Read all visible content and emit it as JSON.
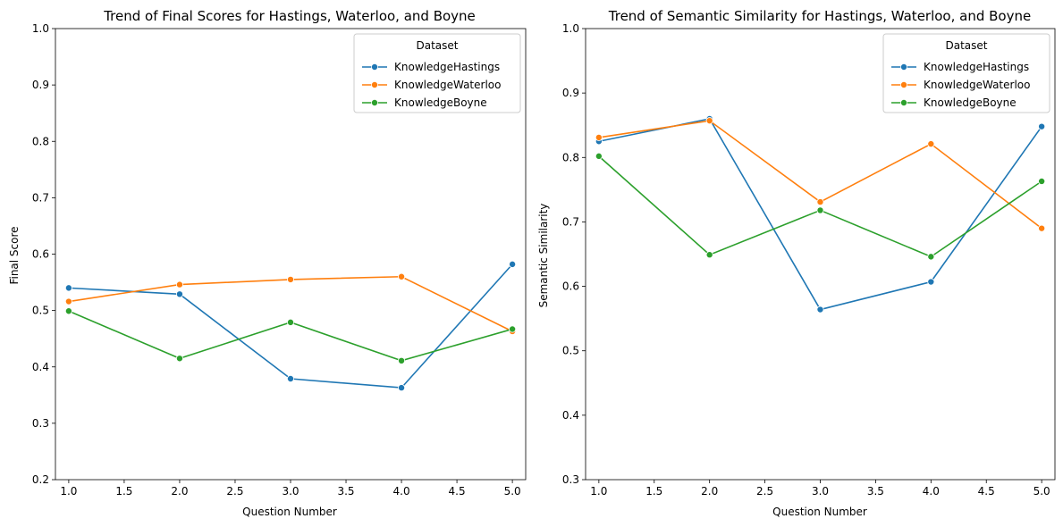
{
  "chart_data": [
    {
      "type": "line",
      "title": "Trend of Final Scores for Hastings, Waterloo, and Boyne",
      "xlabel": "Question Number",
      "ylabel": "Final Score",
      "xlim": [
        0.88,
        5.12
      ],
      "ylim": [
        0.2,
        1.0
      ],
      "xticks": [
        "1.0",
        "1.5",
        "2.0",
        "2.5",
        "3.0",
        "3.5",
        "4.0",
        "4.5",
        "5.0"
      ],
      "yticks": [
        "0.2",
        "0.3",
        "0.4",
        "0.5",
        "0.6",
        "0.7",
        "0.8",
        "0.9",
        "1.0"
      ],
      "grid": false,
      "legend_title": "Dataset",
      "legend_position": "top-right",
      "x": [
        1,
        2,
        3,
        4,
        5
      ],
      "series": [
        {
          "name": "KnowledgeHastings",
          "color": "#1f77b4",
          "values": [
            0.54,
            0.529,
            0.379,
            0.363,
            0.582
          ]
        },
        {
          "name": "KnowledgeWaterloo",
          "color": "#ff7f0e",
          "values": [
            0.516,
            0.546,
            0.555,
            0.56,
            0.463
          ]
        },
        {
          "name": "KnowledgeBoyne",
          "color": "#2ca02c",
          "values": [
            0.499,
            0.415,
            0.479,
            0.411,
            0.467
          ]
        }
      ]
    },
    {
      "type": "line",
      "title": "Trend of Semantic Similarity for Hastings, Waterloo, and Boyne",
      "xlabel": "Question Number",
      "ylabel": "Semantic Similarity",
      "xlim": [
        0.88,
        5.12
      ],
      "ylim": [
        0.3,
        1.0
      ],
      "xticks": [
        "1.0",
        "1.5",
        "2.0",
        "2.5",
        "3.0",
        "3.5",
        "4.0",
        "4.5",
        "5.0"
      ],
      "yticks": [
        "0.3",
        "0.4",
        "0.5",
        "0.6",
        "0.7",
        "0.8",
        "0.9",
        "1.0"
      ],
      "grid": false,
      "legend_title": "Dataset",
      "legend_position": "top-right",
      "x": [
        1,
        2,
        3,
        4,
        5
      ],
      "series": [
        {
          "name": "KnowledgeHastings",
          "color": "#1f77b4",
          "values": [
            0.825,
            0.86,
            0.564,
            0.607,
            0.848
          ]
        },
        {
          "name": "KnowledgeWaterloo",
          "color": "#ff7f0e",
          "values": [
            0.831,
            0.857,
            0.731,
            0.821,
            0.69
          ]
        },
        {
          "name": "KnowledgeBoyne",
          "color": "#2ca02c",
          "values": [
            0.802,
            0.649,
            0.718,
            0.646,
            0.763
          ]
        }
      ]
    }
  ]
}
